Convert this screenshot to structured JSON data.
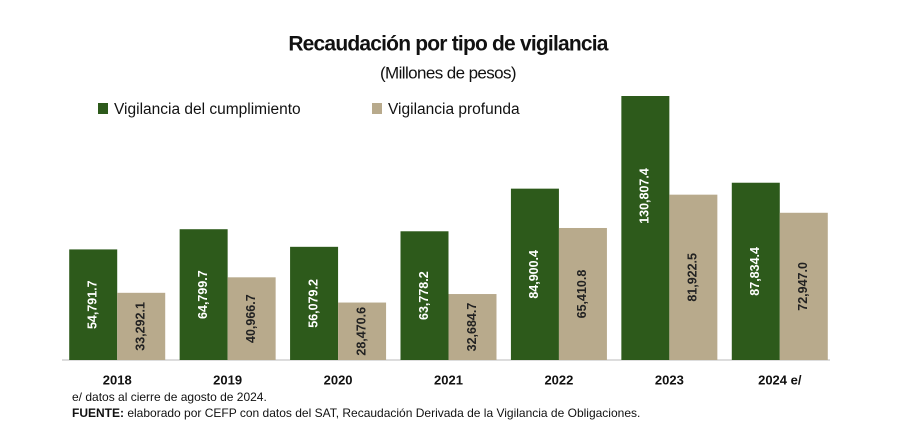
{
  "chart_data": {
    "type": "bar",
    "title": "Recaudación por tipo de vigilancia",
    "subtitle": "(Millones de pesos)",
    "categories": [
      "2018",
      "2019",
      "2020",
      "2021",
      "2022",
      "2023",
      "2024 e/"
    ],
    "series": [
      {
        "name": "Vigilancia del cumplimiento",
        "color": "#2d5a1b",
        "values": [
          54791.7,
          64799.7,
          56079.2,
          63778.2,
          84900.4,
          130807.4,
          87834.4
        ],
        "value_labels": [
          "54,791.7",
          "64,799.7",
          "56,079.2",
          "63,778.2",
          "84,900.4",
          "130,807.4",
          "87,834.4"
        ]
      },
      {
        "name": "Vigilancia profunda",
        "color": "#b8aa8c",
        "values": [
          33292.1,
          40966.7,
          28470.6,
          32684.7,
          65410.8,
          81922.5,
          72947.0
        ],
        "value_labels": [
          "33,292.1",
          "40,966.7",
          "28,470.6",
          "32,684.7",
          "65,410.8",
          "81,922.5",
          "72,947.0"
        ]
      }
    ],
    "notes": [
      {
        "text": "e/ datos al cierre de agosto de 2024."
      },
      {
        "label": "FUENTE:",
        "text": "elaborado por CEFP con datos del SAT, Recaudación Derivada de la Vigilancia de Obligaciones."
      }
    ]
  }
}
